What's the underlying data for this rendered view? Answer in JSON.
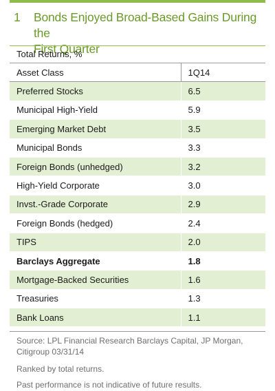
{
  "figure": {
    "number": "1",
    "title_line1": "Bonds Enjoyed Broad-Based Gains During the",
    "title_line2": "First Quarter"
  },
  "chart_data": {
    "type": "table",
    "subtitle": "Total Returns, %",
    "columns": [
      "Asset Class",
      "1Q14"
    ],
    "rows": [
      {
        "label": "Preferred Stocks",
        "value": "6.5",
        "bold": false
      },
      {
        "label": "Municipal High-Yield",
        "value": "5.9",
        "bold": false
      },
      {
        "label": "Emerging Market Debt",
        "value": "3.5",
        "bold": false
      },
      {
        "label": "Municipal Bonds",
        "value": "3.3",
        "bold": false
      },
      {
        "label": "Foreign Bonds (unhedged)",
        "value": "3.2",
        "bold": false
      },
      {
        "label": "High-Yield Corporate",
        "value": "3.0",
        "bold": false
      },
      {
        "label": "Invst.-Grade Corporate",
        "value": "2.9",
        "bold": false
      },
      {
        "label": "Foreign Bonds (hedged)",
        "value": "2.4",
        "bold": false
      },
      {
        "label": "TIPS",
        "value": "2.0",
        "bold": false
      },
      {
        "label": "Barclays Aggregate",
        "value": "1.8",
        "bold": true
      },
      {
        "label": "Mortgage-Backed Securities",
        "value": "1.6",
        "bold": false
      },
      {
        "label": "Treasuries",
        "value": "1.3",
        "bold": false
      },
      {
        "label": "Bank Loans",
        "value": "1.1",
        "bold": false
      }
    ]
  },
  "notes": {
    "source_line1": "Source: LPL Financial Research Barclays Capital, JP Morgan,",
    "source_line2": "Citigroup   03/31/14",
    "ranked": "Ranked by total returns.",
    "disclaimer": "Past performance is not indicative of future results."
  },
  "colors": {
    "accent_green": "#8fbc4a",
    "title_green": "#6b9a2b",
    "row_shade": "#e3efd2",
    "note_gray": "#6e6e6e"
  }
}
